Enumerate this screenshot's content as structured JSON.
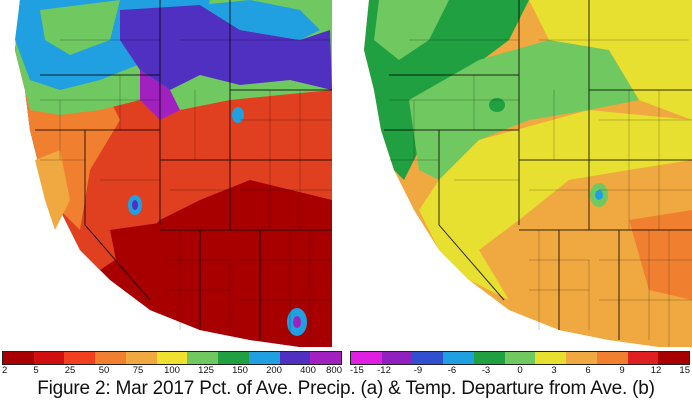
{
  "precip_map": {
    "legend_labels": [
      "2",
      "5",
      "25",
      "50",
      "75",
      "100",
      "125",
      "150",
      "200",
      "400",
      "800"
    ],
    "legend_colors": [
      "#a80000",
      "#d01010",
      "#f04020",
      "#f08030",
      "#f0a840",
      "#f0e030",
      "#70c860",
      "#20a040",
      "#20a0e0",
      "#5030c0",
      "#a020c0"
    ]
  },
  "temp_map": {
    "legend_labels": [
      "-15",
      "-12",
      "-9",
      "-6",
      "-3",
      "0",
      "3",
      "6",
      "9",
      "12",
      "15"
    ],
    "legend_colors": [
      "#e020e0",
      "#9020c0",
      "#3050d0",
      "#20a0e0",
      "#20a040",
      "#70c860",
      "#e8e030",
      "#f0a840",
      "#f08030",
      "#e02020",
      "#a80000"
    ]
  },
  "caption": "Figure 2: Mar 2017 Pct. of Ave. Precip. (a) & Temp. Departure from Ave. (b)"
}
